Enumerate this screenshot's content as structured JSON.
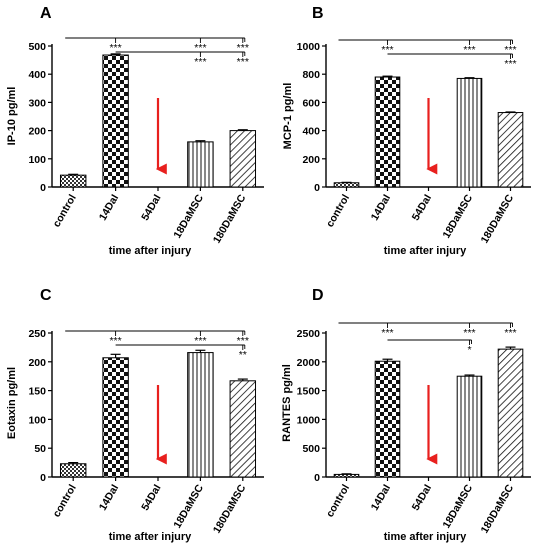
{
  "chart_data": [
    {
      "type": "bar",
      "panel_label": "A",
      "categories": [
        "control",
        "14DaI",
        "54DaI",
        "18DaMSC",
        "180DaMSC"
      ],
      "values": [
        42,
        468,
        0,
        160,
        200
      ],
      "errors": [
        3,
        4,
        0,
        4,
        3
      ],
      "ylabel": "IP-10 pg/ml",
      "xlabel": "time after injury",
      "ylim": [
        0,
        500
      ],
      "yticks": [
        "0",
        "100",
        "200",
        "300",
        "400",
        "500"
      ],
      "arrow_at": "54DaI",
      "annotations": [
        "***",
        "***",
        "***",
        "***",
        "***"
      ]
    },
    {
      "type": "bar",
      "panel_label": "B",
      "categories": [
        "control",
        "14DaI",
        "54DaI",
        "18DaMSC",
        "180DaMSC"
      ],
      "values": [
        30,
        780,
        0,
        770,
        528
      ],
      "errors": [
        3,
        6,
        0,
        5,
        4
      ],
      "ylabel": "MCP-1 pg/ml",
      "xlabel": "time after injury",
      "ylim": [
        0,
        1000
      ],
      "yticks": [
        "0",
        "200",
        "400",
        "600",
        "800",
        "1000"
      ],
      "arrow_at": "54DaI",
      "annotations": [
        "***",
        "***",
        "***",
        "***"
      ]
    },
    {
      "type": "bar",
      "panel_label": "C",
      "categories": [
        "control",
        "14DaI",
        "54DaI",
        "18DaMSC",
        "180DaMSC"
      ],
      "values": [
        23,
        207,
        0,
        216,
        167
      ],
      "errors": [
        2,
        6,
        0,
        4,
        3
      ],
      "ylabel": "Eotaxin pg/ml",
      "xlabel": "time after injury",
      "ylim": [
        0,
        250
      ],
      "yticks": [
        "0",
        "50",
        "100",
        "150",
        "200",
        "250"
      ],
      "arrow_at": "54DaI",
      "annotations": [
        "***",
        "***",
        "***",
        "**"
      ]
    },
    {
      "type": "bar",
      "panel_label": "D",
      "categories": [
        "control",
        "14DaI",
        "54DaI",
        "18DaMSC",
        "180DaMSC"
      ],
      "values": [
        45,
        2010,
        0,
        1750,
        2220
      ],
      "errors": [
        10,
        35,
        0,
        20,
        35
      ],
      "ylabel": "RANTES pg/ml",
      "xlabel": "time after injury",
      "ylim": [
        0,
        2500
      ],
      "yticks": [
        "0",
        "500",
        "1000",
        "1500",
        "2000",
        "2500"
      ],
      "arrow_at": "54DaI",
      "annotations": [
        "***",
        "***",
        "*",
        "***"
      ]
    }
  ],
  "colors": {
    "arrow": "#e8201e",
    "axis": "#000000",
    "bar_fill": "#ffffff"
  }
}
